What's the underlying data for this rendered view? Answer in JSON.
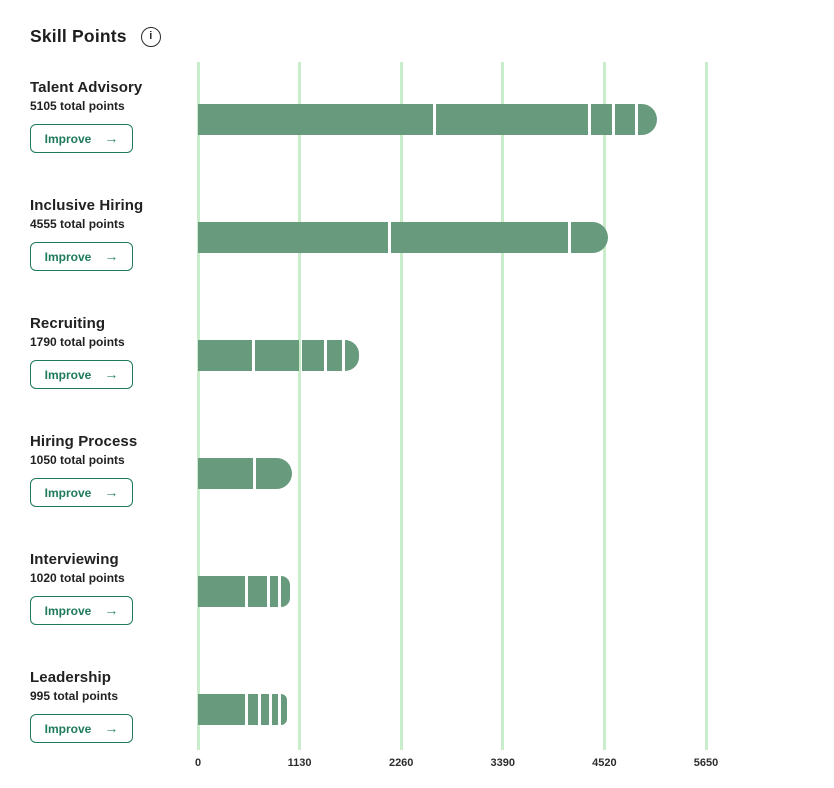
{
  "header": {
    "title": "Skill Points",
    "info_icon": "i"
  },
  "buttons": {
    "improve_label": "Improve",
    "arrow_icon": "→"
  },
  "colors": {
    "bar_green": "#689b7e",
    "gridline_green": "#c9ecca",
    "accent_green": "#1e7a5b",
    "text_dark": "#212121"
  },
  "axis": {
    "max": 5650,
    "ticks": [
      "0",
      "1130",
      "2260",
      "3390",
      "4520",
      "5650"
    ]
  },
  "skills": [
    {
      "name": "Talent Advisory",
      "subtitle": "5105 total points",
      "total": 5105,
      "segments": [
        2610,
        1690,
        235,
        225,
        210
      ]
    },
    {
      "name": "Inclusive Hiring",
      "subtitle": "4555 total points",
      "total": 4555,
      "segments": [
        2110,
        1960,
        410
      ]
    },
    {
      "name": "Recruiting",
      "subtitle": "1790 total points",
      "total": 1790,
      "segments": [
        590,
        480,
        235,
        165,
        155
      ]
    },
    {
      "name": "Hiring Process",
      "subtitle": "1050 total points",
      "total": 1050,
      "segments": [
        600,
        405
      ]
    },
    {
      "name": "Interviewing",
      "subtitle": "1020 total points",
      "total": 1020,
      "segments": [
        535,
        220,
        90,
        100
      ]
    },
    {
      "name": "Leadership",
      "subtitle": "995 total points",
      "total": 995,
      "segments": [
        550,
        110,
        100,
        65,
        75
      ]
    }
  ],
  "chart_data": {
    "type": "bar",
    "orientation": "horizontal",
    "title": "Skill Points",
    "categories": [
      "Talent Advisory",
      "Inclusive Hiring",
      "Recruiting",
      "Hiring Process",
      "Interviewing",
      "Leadership"
    ],
    "values": [
      5105,
      4555,
      1790,
      1050,
      1020,
      995
    ],
    "stacked_segments": [
      [
        2610,
        1690,
        235,
        225,
        210
      ],
      [
        2110,
        1960,
        410
      ],
      [
        590,
        480,
        235,
        165,
        155
      ],
      [
        600,
        405
      ],
      [
        535,
        220,
        90,
        100
      ],
      [
        550,
        110,
        100,
        65,
        75
      ]
    ],
    "xlabel": "",
    "ylabel": "",
    "xlim": [
      0,
      5650
    ],
    "x_ticks": [
      0,
      1130,
      2260,
      3390,
      4520,
      5650
    ],
    "grid": "vertical-on"
  }
}
